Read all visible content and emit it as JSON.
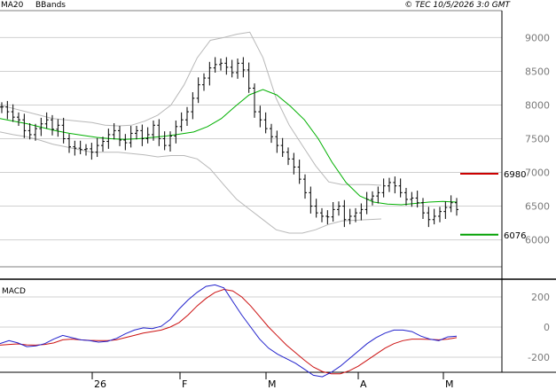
{
  "header": {
    "indicator_1": "MA20",
    "indicator_2": "BBands",
    "copyright": "© TEC 10/5/2026 3:0 GMT"
  },
  "colors": {
    "ma20": "#00b000",
    "bbands": "#b8b8b8",
    "price": "#000000",
    "grid": "#d0d0d0",
    "resistance": "#cc0000",
    "support": "#00a000",
    "macd_line": "#2222cc",
    "signal_line": "#cc1111"
  },
  "chart_data": [
    {
      "type": "line",
      "panel": "price",
      "ylim": [
        5600,
        9400
      ],
      "yticks": [
        {
          "value": 6000,
          "label": "6000"
        },
        {
          "value": 6500,
          "label": "6500"
        },
        {
          "value": 7000,
          "label": "7000"
        },
        {
          "value": 7500,
          "label": "7500"
        },
        {
          "value": 8000,
          "label": "8000"
        },
        {
          "value": 8500,
          "label": "8500"
        },
        {
          "value": 9000,
          "label": "9000"
        }
      ],
      "xticks": [
        "26",
        "F",
        "M",
        "A",
        "M"
      ],
      "series": [
        {
          "name": "MA20",
          "values": [
            7800,
            7760,
            7720,
            7670,
            7620,
            7580,
            7550,
            7520,
            7500,
            7490,
            7500,
            7520,
            7540,
            7570,
            7600,
            7680,
            7800,
            7980,
            8150,
            8230,
            8150,
            7980,
            7780,
            7500,
            7150,
            6850,
            6650,
            6560,
            6530,
            6520,
            6540,
            6560,
            6570,
            6560
          ]
        },
        {
          "name": "BBands",
          "values": [
            8000,
            7950,
            7900,
            7850,
            7800,
            7780,
            7760,
            7740,
            7700,
            7690,
            7700,
            7760,
            7850,
            8000,
            8300,
            8700,
            8960,
            9000,
            9050,
            9080,
            8700,
            8100,
            7700,
            7400,
            7100,
            6860,
            6820,
            6820,
            6820,
            6810
          ]
        },
        {
          "values": [
            7600,
            7560,
            7530,
            7480,
            7420,
            7380,
            7340,
            7300,
            7300,
            7300,
            7280,
            7260,
            7230,
            7250,
            7250,
            7200,
            7050,
            6820,
            6600,
            6450,
            6300,
            6150,
            6100,
            6100,
            6150,
            6230,
            6280,
            6290,
            6300,
            6310
          ]
        }
      ],
      "prices": [
        7970,
        7900,
        7820,
        7780,
        7620,
        7560,
        7650,
        7720,
        7780,
        7640,
        7700,
        7500,
        7380,
        7360,
        7340,
        7350,
        7300,
        7400,
        7460,
        7560,
        7620,
        7480,
        7440,
        7580,
        7620,
        7500,
        7560,
        7700,
        7500,
        7400,
        7540,
        7680,
        7780,
        7900,
        8100,
        8300,
        8400,
        8550,
        8600,
        8620,
        8560,
        8480,
        8620,
        8520,
        8250,
        7900,
        7780,
        7650,
        7530,
        7400,
        7300,
        7200,
        7080,
        6900,
        6700,
        6500,
        6400,
        6350,
        6340,
        6450,
        6500,
        6300,
        6350,
        6400,
        6450,
        6600,
        6650,
        6700,
        6800,
        6850,
        6800,
        6700,
        6600,
        6620,
        6550,
        6400,
        6300,
        6350,
        6420,
        6480,
        6550,
        6450
      ],
      "levels": [
        {
          "value": 6980,
          "label": "6980",
          "kind": "resistance"
        },
        {
          "value": 6076,
          "label": "6076",
          "kind": "support"
        }
      ]
    },
    {
      "type": "line",
      "panel": "macd",
      "title": "MACD",
      "ylim": [
        -300,
        300
      ],
      "yticks": [
        {
          "value": 200,
          "label": "200"
        },
        {
          "value": 0,
          "label": "0"
        },
        {
          "value": -200,
          "label": "-200"
        }
      ],
      "series": [
        {
          "name": "MACD",
          "values": [
            -110,
            -90,
            -105,
            -130,
            -125,
            -110,
            -80,
            -55,
            -70,
            -85,
            -90,
            -100,
            -95,
            -75,
            -45,
            -20,
            -5,
            -10,
            5,
            50,
            120,
            180,
            230,
            270,
            280,
            260,
            170,
            80,
            0,
            -80,
            -140,
            -180,
            -210,
            -240,
            -280,
            -320,
            -330,
            -300,
            -260,
            -210,
            -160,
            -110,
            -70,
            -40,
            -20,
            -20,
            -30,
            -60,
            -80,
            -90,
            -65,
            -60
          ]
        },
        {
          "name": "Signal",
          "values": [
            -120,
            -115,
            -112,
            -118,
            -120,
            -115,
            -105,
            -85,
            -80,
            -85,
            -88,
            -90,
            -90,
            -85,
            -70,
            -55,
            -40,
            -30,
            -20,
            0,
            30,
            80,
            140,
            190,
            230,
            250,
            240,
            200,
            140,
            70,
            0,
            -60,
            -120,
            -170,
            -220,
            -265,
            -295,
            -310,
            -310,
            -290,
            -260,
            -220,
            -180,
            -140,
            -110,
            -90,
            -80,
            -80,
            -82,
            -85,
            -80,
            -70
          ]
        }
      ]
    }
  ]
}
